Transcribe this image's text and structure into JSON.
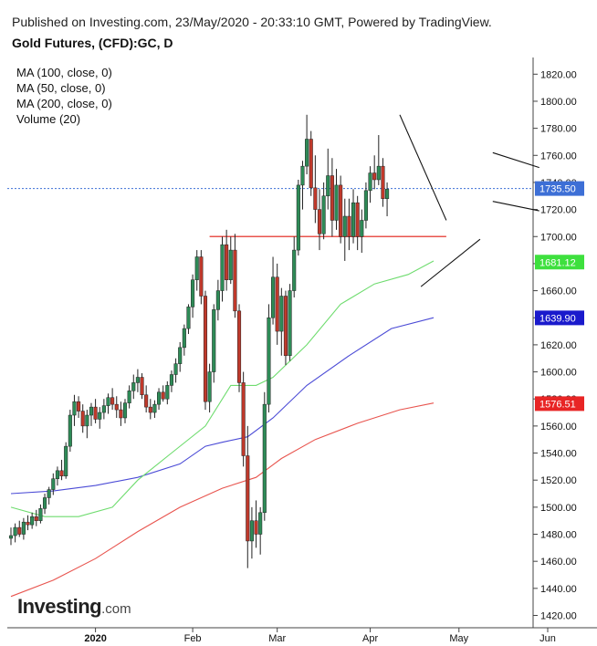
{
  "header": {
    "published": "Published on Investing.com, 23/May/2020 - 20:33:10 GMT, Powered by TradingView.",
    "symbol": "Gold Futures, (CFD):GC, D"
  },
  "legend": [
    "MA (100, close, 0)",
    "MA (50, close, 0)",
    "MA (200, close, 0)",
    "Volume (20)"
  ],
  "logo": {
    "brand": "Investing",
    "domain": ".com"
  },
  "chart_data": {
    "type": "candlestick",
    "ylim": [
      1420,
      1830
    ],
    "yticks": [
      1420,
      1440,
      1460,
      1480,
      1500,
      1520,
      1540,
      1560,
      1580,
      1600,
      1620,
      1640,
      1660,
      1680,
      1700,
      1720,
      1740,
      1760,
      1780,
      1800,
      1820
    ],
    "ytick_labels": [
      "1420.00",
      "1440.00",
      "1460.00",
      "1480.00",
      "1500.00",
      "1520.00",
      "1540.00",
      "1560.00",
      "1580.00",
      "1600.00",
      "1620.00",
      "1640.00",
      "1660.00",
      "1680.00",
      "1700.00",
      "1720.00",
      "1740.00",
      "1760.00",
      "1780.00",
      "1800.00",
      "1820.00"
    ],
    "xticks": [
      {
        "label": "2020",
        "bar": 20,
        "bold": true
      },
      {
        "label": "Feb",
        "bar": 43
      },
      {
        "label": "Mar",
        "bar": 63
      },
      {
        "label": "Apr",
        "bar": 85
      },
      {
        "label": "May",
        "bar": 106
      },
      {
        "label": "Jun",
        "bar": 127
      }
    ],
    "colors": {
      "up": "#2e8b57",
      "down": "#c0392b",
      "ma50": "#6fdc6f",
      "ma100": "#4b4bd6",
      "ma200": "#e8544e",
      "resistance": "#e8544e",
      "pattern": "#111111",
      "last_price": "#3d6fd6"
    },
    "candles_ohlc": [
      [
        1477,
        1485,
        1472,
        1479
      ],
      [
        1479,
        1488,
        1474,
        1485
      ],
      [
        1485,
        1490,
        1478,
        1480
      ],
      [
        1480,
        1492,
        1476,
        1489
      ],
      [
        1489,
        1494,
        1483,
        1487
      ],
      [
        1487,
        1496,
        1484,
        1493
      ],
      [
        1493,
        1498,
        1486,
        1490
      ],
      [
        1490,
        1502,
        1488,
        1499
      ],
      [
        1499,
        1510,
        1495,
        1507
      ],
      [
        1507,
        1515,
        1502,
        1513
      ],
      [
        1513,
        1525,
        1509,
        1521
      ],
      [
        1521,
        1530,
        1516,
        1527
      ],
      [
        1527,
        1535,
        1520,
        1523
      ],
      [
        1523,
        1548,
        1521,
        1545
      ],
      [
        1545,
        1572,
        1541,
        1568
      ],
      [
        1568,
        1583,
        1560,
        1578
      ],
      [
        1578,
        1582,
        1566,
        1571
      ],
      [
        1571,
        1576,
        1555,
        1560
      ],
      [
        1560,
        1572,
        1551,
        1568
      ],
      [
        1568,
        1577,
        1560,
        1574
      ],
      [
        1574,
        1580,
        1562,
        1565
      ],
      [
        1565,
        1574,
        1558,
        1570
      ],
      [
        1570,
        1580,
        1565,
        1575
      ],
      [
        1575,
        1584,
        1569,
        1581
      ],
      [
        1581,
        1588,
        1572,
        1576
      ],
      [
        1576,
        1582,
        1566,
        1572
      ],
      [
        1572,
        1578,
        1560,
        1566
      ],
      [
        1566,
        1580,
        1562,
        1577
      ],
      [
        1577,
        1590,
        1573,
        1586
      ],
      [
        1586,
        1598,
        1580,
        1592
      ],
      [
        1592,
        1602,
        1585,
        1596
      ],
      [
        1596,
        1599,
        1580,
        1583
      ],
      [
        1583,
        1590,
        1570,
        1574
      ],
      [
        1574,
        1580,
        1565,
        1570
      ],
      [
        1570,
        1579,
        1566,
        1576
      ],
      [
        1576,
        1588,
        1572,
        1585
      ],
      [
        1585,
        1590,
        1578,
        1580
      ],
      [
        1580,
        1593,
        1576,
        1590
      ],
      [
        1590,
        1601,
        1585,
        1598
      ],
      [
        1598,
        1610,
        1592,
        1606
      ],
      [
        1606,
        1622,
        1600,
        1618
      ],
      [
        1618,
        1635,
        1612,
        1632
      ],
      [
        1632,
        1650,
        1628,
        1648
      ],
      [
        1648,
        1672,
        1640,
        1668
      ],
      [
        1668,
        1690,
        1660,
        1685
      ],
      [
        1685,
        1690,
        1650,
        1656
      ],
      [
        1656,
        1660,
        1572,
        1578
      ],
      [
        1578,
        1606,
        1570,
        1600
      ],
      [
        1600,
        1650,
        1592,
        1646
      ],
      [
        1646,
        1668,
        1638,
        1660
      ],
      [
        1660,
        1700,
        1652,
        1694
      ],
      [
        1694,
        1705,
        1660,
        1668
      ],
      [
        1668,
        1700,
        1665,
        1690
      ],
      [
        1690,
        1702,
        1640,
        1645
      ],
      [
        1645,
        1650,
        1585,
        1592
      ],
      [
        1592,
        1600,
        1530,
        1538
      ],
      [
        1538,
        1560,
        1455,
        1475
      ],
      [
        1475,
        1500,
        1462,
        1490
      ],
      [
        1490,
        1505,
        1470,
        1480
      ],
      [
        1480,
        1500,
        1465,
        1496
      ],
      [
        1496,
        1585,
        1490,
        1576
      ],
      [
        1576,
        1650,
        1570,
        1640
      ],
      [
        1640,
        1685,
        1635,
        1670
      ],
      [
        1670,
        1680,
        1620,
        1630
      ],
      [
        1630,
        1662,
        1612,
        1656
      ],
      [
        1656,
        1660,
        1605,
        1612
      ],
      [
        1612,
        1665,
        1608,
        1660
      ],
      [
        1660,
        1700,
        1655,
        1690
      ],
      [
        1690,
        1742,
        1686,
        1738
      ],
      [
        1738,
        1756,
        1720,
        1752
      ],
      [
        1752,
        1790,
        1746,
        1772
      ],
      [
        1772,
        1778,
        1730,
        1736
      ],
      [
        1736,
        1760,
        1710,
        1720
      ],
      [
        1720,
        1735,
        1690,
        1702
      ],
      [
        1702,
        1740,
        1698,
        1730
      ],
      [
        1730,
        1765,
        1720,
        1745
      ],
      [
        1745,
        1758,
        1700,
        1712
      ],
      [
        1712,
        1750,
        1705,
        1738
      ],
      [
        1738,
        1745,
        1695,
        1700
      ],
      [
        1700,
        1728,
        1682,
        1715
      ],
      [
        1715,
        1728,
        1690,
        1700
      ],
      [
        1700,
        1735,
        1695,
        1725
      ],
      [
        1725,
        1730,
        1690,
        1700
      ],
      [
        1700,
        1720,
        1688,
        1712
      ],
      [
        1712,
        1740,
        1706,
        1734
      ],
      [
        1734,
        1752,
        1725,
        1747
      ],
      [
        1747,
        1760,
        1735,
        1742
      ],
      [
        1742,
        1775,
        1738,
        1752
      ],
      [
        1752,
        1758,
        1722,
        1728
      ],
      [
        1728,
        1740,
        1715,
        1735
      ]
    ],
    "candle_bars": [
      0,
      1,
      2,
      3,
      4,
      5,
      6,
      7,
      8,
      9,
      10,
      11,
      12,
      13,
      14,
      15,
      16,
      17,
      18,
      19,
      20,
      21,
      22,
      23,
      24,
      25,
      26,
      27,
      28,
      29,
      30,
      31,
      32,
      33,
      34,
      35,
      36,
      37,
      38,
      39,
      40,
      41,
      42,
      43,
      44,
      45,
      46,
      47,
      48,
      49,
      50,
      51,
      52,
      53,
      54,
      55,
      56,
      57,
      58,
      59,
      60,
      61,
      62,
      63,
      64,
      65,
      66,
      67,
      68,
      69,
      70,
      71,
      72,
      73,
      74,
      75,
      76,
      77,
      78,
      79,
      80,
      81,
      82,
      83,
      84,
      85,
      86,
      87,
      88,
      89,
      90
    ],
    "ma50": [
      [
        0,
        1500
      ],
      [
        8,
        1493
      ],
      [
        16,
        1493
      ],
      [
        24,
        1500
      ],
      [
        30,
        1520
      ],
      [
        38,
        1540
      ],
      [
        46,
        1560
      ],
      [
        52,
        1590
      ],
      [
        58,
        1590
      ],
      [
        62,
        1596
      ],
      [
        70,
        1620
      ],
      [
        78,
        1650
      ],
      [
        86,
        1665
      ],
      [
        94,
        1672
      ],
      [
        100,
        1682
      ]
    ],
    "ma100": [
      [
        0,
        1510
      ],
      [
        10,
        1512
      ],
      [
        20,
        1516
      ],
      [
        30,
        1522
      ],
      [
        40,
        1532
      ],
      [
        46,
        1545
      ],
      [
        50,
        1548
      ],
      [
        56,
        1552
      ],
      [
        62,
        1566
      ],
      [
        70,
        1590
      ],
      [
        80,
        1612
      ],
      [
        90,
        1632
      ],
      [
        100,
        1640
      ]
    ],
    "ma200": [
      [
        0,
        1434
      ],
      [
        10,
        1446
      ],
      [
        20,
        1462
      ],
      [
        30,
        1482
      ],
      [
        40,
        1500
      ],
      [
        50,
        1514
      ],
      [
        58,
        1522
      ],
      [
        64,
        1536
      ],
      [
        72,
        1550
      ],
      [
        82,
        1562
      ],
      [
        92,
        1572
      ],
      [
        100,
        1577
      ]
    ],
    "resistance": {
      "from_bar": 47,
      "to_bar": 103,
      "y": 1700
    },
    "pattern_lines": [
      {
        "from": [
          92,
          1790
        ],
        "to": [
          103,
          1712
        ]
      },
      {
        "from": [
          97,
          1663
        ],
        "to": [
          111,
          1698
        ]
      },
      {
        "from": [
          114,
          1762
        ],
        "to": [
          125,
          1751
        ]
      },
      {
        "from": [
          114,
          1726
        ],
        "to": [
          125,
          1719
        ]
      }
    ],
    "last_price": {
      "value": 1735.5,
      "label": "1735.50"
    },
    "price_tags": [
      {
        "label": "1735.50",
        "value": 1735.5,
        "color": "#3d6fd6"
      },
      {
        "label": "1681.12",
        "value": 1681.12,
        "color": "#3ee03e"
      },
      {
        "label": "1639.90",
        "value": 1639.9,
        "color": "#1a1acc"
      },
      {
        "label": "1576.51",
        "value": 1576.51,
        "color": "#e82525"
      }
    ]
  }
}
